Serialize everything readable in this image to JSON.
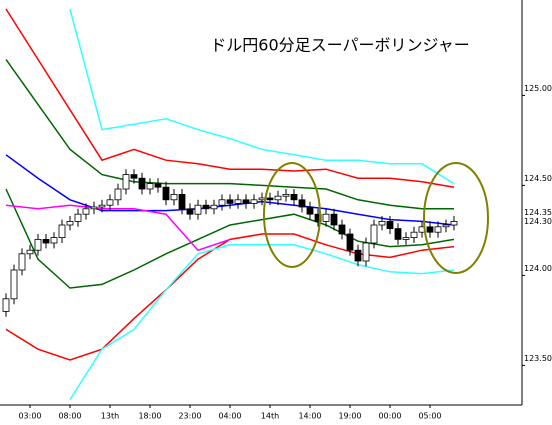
{
  "chart_data": {
    "type": "candlestick",
    "title": "ドル円60分足スーパーボリンジャー",
    "xlim": [
      -0.75,
      64.5
    ],
    "ylim": [
      123.28,
      125.53
    ],
    "xticks": [
      {
        "value": 3,
        "label": "03:00"
      },
      {
        "value": 8,
        "label": "08:00"
      },
      {
        "value": 13,
        "label": "13th"
      },
      {
        "value": 18,
        "label": "18:00"
      },
      {
        "value": 23,
        "label": "23:00"
      },
      {
        "value": 28,
        "label": "04:00"
      },
      {
        "value": 33,
        "label": "14th"
      },
      {
        "value": 38,
        "label": "14:00"
      },
      {
        "value": 43,
        "label": "19:00"
      },
      {
        "value": 48,
        "label": "00:00"
      },
      {
        "value": 53,
        "label": "05:00"
      }
    ],
    "yticks": [
      {
        "value": 125,
        "label": "125.00"
      },
      {
        "value": 124.5,
        "label": "124.50"
      },
      {
        "value": 124,
        "label": "124.00"
      },
      {
        "value": 123.5,
        "label": "123.50"
      }
    ],
    "price_labels": [
      {
        "value": 124.35,
        "label": "124.35",
        "color": "#ff00ff"
      },
      {
        "value": 124.3,
        "label": "124.30",
        "color": "#000000"
      }
    ],
    "candles": {
      "up_color": "#ffffff",
      "down_color": "#000000",
      "x": [
        0,
        1,
        2,
        3,
        4,
        5,
        6,
        7,
        8,
        9,
        10,
        11,
        12,
        13,
        14,
        15,
        16,
        17,
        18,
        19,
        20,
        21,
        22,
        23,
        24,
        25,
        26,
        27,
        28,
        29,
        30,
        31,
        32,
        33,
        34,
        35,
        36,
        37,
        38,
        39,
        40,
        41,
        42,
        43,
        44,
        45,
        46,
        47,
        48,
        49,
        50,
        51,
        52,
        53,
        54,
        55,
        56
      ],
      "open": [
        123.8,
        123.87,
        124.03,
        124.12,
        124.14,
        124.2,
        124.18,
        124.21,
        124.28,
        124.3,
        124.34,
        124.37,
        124.38,
        124.39,
        124.42,
        124.48,
        124.56,
        124.54,
        124.48,
        124.51,
        124.49,
        124.42,
        124.45,
        124.37,
        124.34,
        124.39,
        124.37,
        124.39,
        124.42,
        124.4,
        124.42,
        124.4,
        124.42,
        124.43,
        124.42,
        124.44,
        124.45,
        124.42,
        124.38,
        124.34,
        124.3,
        124.34,
        124.28,
        124.23,
        124.14,
        124.08,
        124.18,
        124.28,
        124.3,
        124.26,
        124.2,
        124.21,
        124.24,
        124.27,
        124.24,
        124.27,
        124.28
      ],
      "high": [
        123.9,
        124.06,
        124.15,
        124.17,
        124.23,
        124.23,
        124.24,
        124.31,
        124.33,
        124.37,
        124.4,
        124.41,
        124.42,
        124.45,
        124.51,
        124.59,
        124.59,
        124.57,
        124.54,
        124.54,
        124.52,
        124.48,
        124.48,
        124.4,
        124.42,
        124.42,
        124.42,
        124.45,
        124.45,
        124.45,
        124.45,
        124.45,
        124.46,
        124.46,
        124.47,
        124.48,
        124.48,
        124.45,
        124.41,
        124.37,
        124.37,
        124.37,
        124.31,
        124.26,
        124.17,
        124.21,
        124.31,
        124.33,
        124.33,
        124.29,
        124.24,
        124.27,
        124.3,
        124.3,
        124.3,
        124.31,
        124.33
      ],
      "low": [
        123.77,
        123.84,
        124.0,
        124.09,
        124.11,
        124.15,
        124.15,
        124.18,
        124.25,
        124.27,
        124.31,
        124.34,
        124.35,
        124.36,
        124.39,
        124.45,
        124.51,
        124.45,
        124.45,
        124.46,
        124.39,
        124.39,
        124.34,
        124.31,
        124.31,
        124.34,
        124.34,
        124.36,
        124.37,
        124.37,
        124.37,
        124.37,
        124.39,
        124.39,
        124.39,
        124.41,
        124.39,
        124.35,
        124.31,
        124.27,
        124.27,
        124.25,
        124.2,
        124.11,
        124.05,
        124.05,
        124.15,
        124.25,
        124.23,
        124.17,
        124.17,
        124.18,
        124.21,
        124.21,
        124.21,
        124.24,
        124.25
      ],
      "close": [
        123.87,
        124.03,
        124.12,
        124.14,
        124.2,
        124.18,
        124.21,
        124.28,
        124.3,
        124.34,
        124.37,
        124.38,
        124.39,
        124.42,
        124.48,
        124.56,
        124.54,
        124.48,
        124.51,
        124.49,
        124.42,
        124.45,
        124.37,
        124.34,
        124.39,
        124.37,
        124.39,
        124.42,
        124.4,
        124.42,
        124.4,
        124.42,
        124.43,
        124.42,
        124.44,
        124.45,
        124.42,
        124.38,
        124.34,
        124.3,
        124.34,
        124.28,
        124.23,
        124.14,
        124.08,
        124.18,
        124.28,
        124.3,
        124.26,
        124.2,
        124.21,
        124.24,
        124.27,
        124.24,
        124.27,
        124.28,
        124.3
      ]
    },
    "lines": {
      "x": [
        0,
        4,
        8,
        12,
        16,
        20,
        24,
        28,
        32,
        36,
        40,
        44,
        48,
        52,
        56
      ],
      "series": [
        {
          "color": "#33ffff",
          "values": [
            null,
            null,
            125.48,
            124.81,
            124.84,
            124.87,
            124.81,
            124.76,
            124.7,
            124.67,
            124.64,
            124.64,
            124.62,
            124.62,
            124.51
          ]
        },
        {
          "color": "#ff0000",
          "values": [
            125.48,
            125.2,
            124.92,
            124.64,
            124.7,
            124.64,
            124.62,
            124.59,
            124.59,
            124.58,
            124.59,
            124.54,
            124.54,
            124.52,
            124.49
          ]
        },
        {
          "color": "#006600",
          "values": [
            125.2,
            124.95,
            124.7,
            124.56,
            124.52,
            124.51,
            124.51,
            124.51,
            124.5,
            124.49,
            124.48,
            124.42,
            124.39,
            124.37,
            124.37
          ]
        },
        {
          "color": "#0000ff",
          "values": [
            124.67,
            124.54,
            124.42,
            124.36,
            124.36,
            124.36,
            124.37,
            124.39,
            124.41,
            124.39,
            124.37,
            124.34,
            124.31,
            124.3,
            124.28
          ]
        },
        {
          "color": "#006600",
          "values": [
            124.48,
            124.09,
            123.93,
            123.95,
            124.03,
            124.12,
            124.2,
            124.28,
            124.31,
            124.34,
            124.28,
            124.19,
            124.16,
            124.17,
            124.2
          ]
        },
        {
          "color": "#ff0000",
          "values": [
            123.7,
            123.59,
            123.53,
            123.59,
            123.76,
            123.92,
            124.09,
            124.2,
            124.23,
            124.23,
            124.17,
            124.12,
            124.1,
            124.14,
            124.16
          ]
        },
        {
          "color": "#33ffff",
          "values": [
            null,
            null,
            123.31,
            123.59,
            123.7,
            123.92,
            124.12,
            124.17,
            124.17,
            124.17,
            124.12,
            124.06,
            124.02,
            124.01,
            124.03
          ]
        },
        {
          "color": "#ff00ff",
          "values": [
            124.39,
            124.37,
            124.39,
            124.37,
            124.37,
            124.34,
            124.14,
            124.2,
            null,
            null,
            null,
            null,
            null,
            null,
            null
          ]
        }
      ]
    }
  }
}
